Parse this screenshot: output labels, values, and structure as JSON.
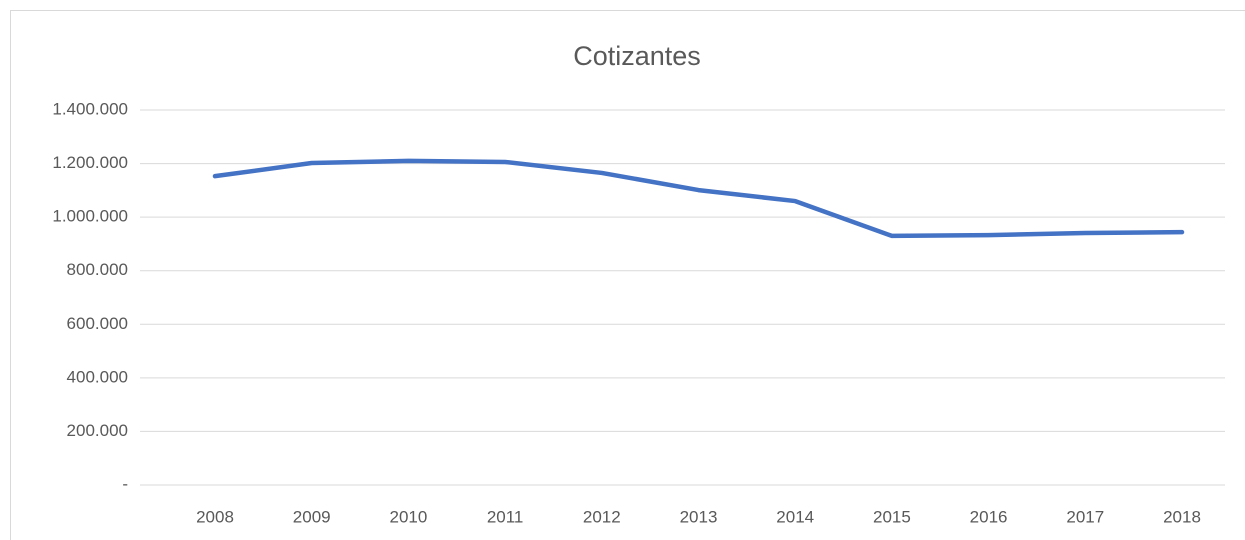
{
  "chart_data": {
    "type": "line",
    "title": "Cotizantes",
    "categories": [
      "2008",
      "2009",
      "2010",
      "2011",
      "2012",
      "2013",
      "2014",
      "2015",
      "2016",
      "2017",
      "2018"
    ],
    "series": [
      {
        "name": "Cotizantes",
        "color": "#4472c4",
        "values": [
          1153000,
          1202000,
          1210000,
          1206000,
          1165000,
          1101000,
          1060000,
          930000,
          933000,
          941000,
          944000
        ]
      }
    ],
    "ylim": [
      0,
      1400000
    ],
    "yticks": [
      {
        "value": 0,
        "label": "-"
      },
      {
        "value": 200000,
        "label": "200.000"
      },
      {
        "value": 400000,
        "label": "400.000"
      },
      {
        "value": 600000,
        "label": "600.000"
      },
      {
        "value": 800000,
        "label": "800.000"
      },
      {
        "value": 1000000,
        "label": "1.000.000"
      },
      {
        "value": 1200000,
        "label": "1.200.000"
      },
      {
        "value": 1400000,
        "label": "1.400.000"
      }
    ],
    "grid": true
  }
}
